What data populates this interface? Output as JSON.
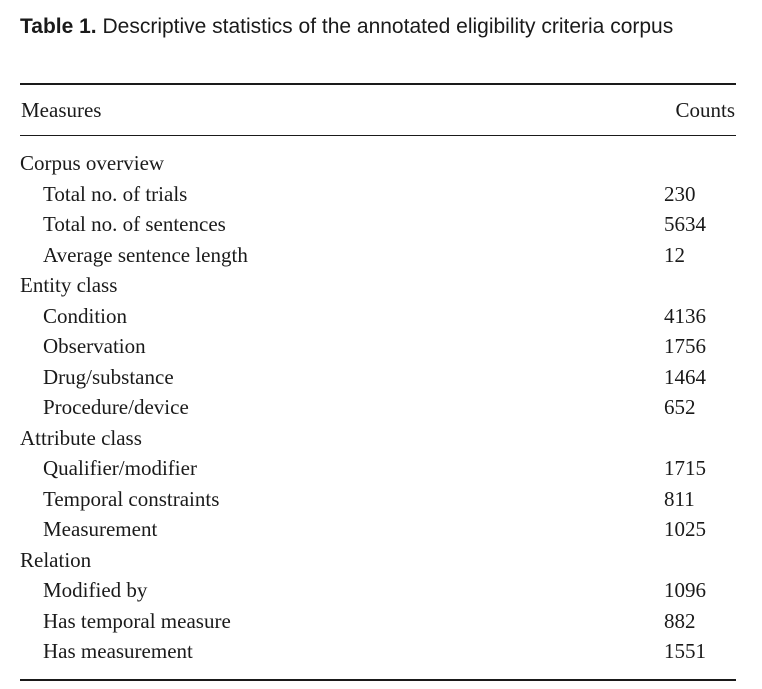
{
  "caption": {
    "label": "Table 1.",
    "text": " Descriptive statistics of the annotated eligibility criteria corpus"
  },
  "header": {
    "measures": "Measures",
    "counts": "Counts"
  },
  "rows": [
    {
      "type": "group",
      "name": "Corpus overview",
      "count": ""
    },
    {
      "type": "item",
      "name": "Total no. of trials",
      "count": "230"
    },
    {
      "type": "item",
      "name": "Total no. of sentences",
      "count": "5634"
    },
    {
      "type": "item",
      "name": "Average sentence length",
      "count": "12"
    },
    {
      "type": "group",
      "name": "Entity class",
      "count": ""
    },
    {
      "type": "item",
      "name": "Condition",
      "count": "4136"
    },
    {
      "type": "item",
      "name": "Observation",
      "count": "1756"
    },
    {
      "type": "item",
      "name": "Drug/substance",
      "count": "1464"
    },
    {
      "type": "item",
      "name": "Procedure/device",
      "count": "652"
    },
    {
      "type": "group",
      "name": "Attribute class",
      "count": ""
    },
    {
      "type": "item",
      "name": "Qualifier/modifier",
      "count": "1715"
    },
    {
      "type": "item",
      "name": "Temporal constraints",
      "count": "811"
    },
    {
      "type": "item",
      "name": "Measurement",
      "count": "1025"
    },
    {
      "type": "group",
      "name": "Relation",
      "count": ""
    },
    {
      "type": "item",
      "name": "Modified by",
      "count": "1096"
    },
    {
      "type": "item",
      "name": "Has temporal measure",
      "count": "882"
    },
    {
      "type": "item",
      "name": "Has measurement",
      "count": "1551"
    }
  ]
}
